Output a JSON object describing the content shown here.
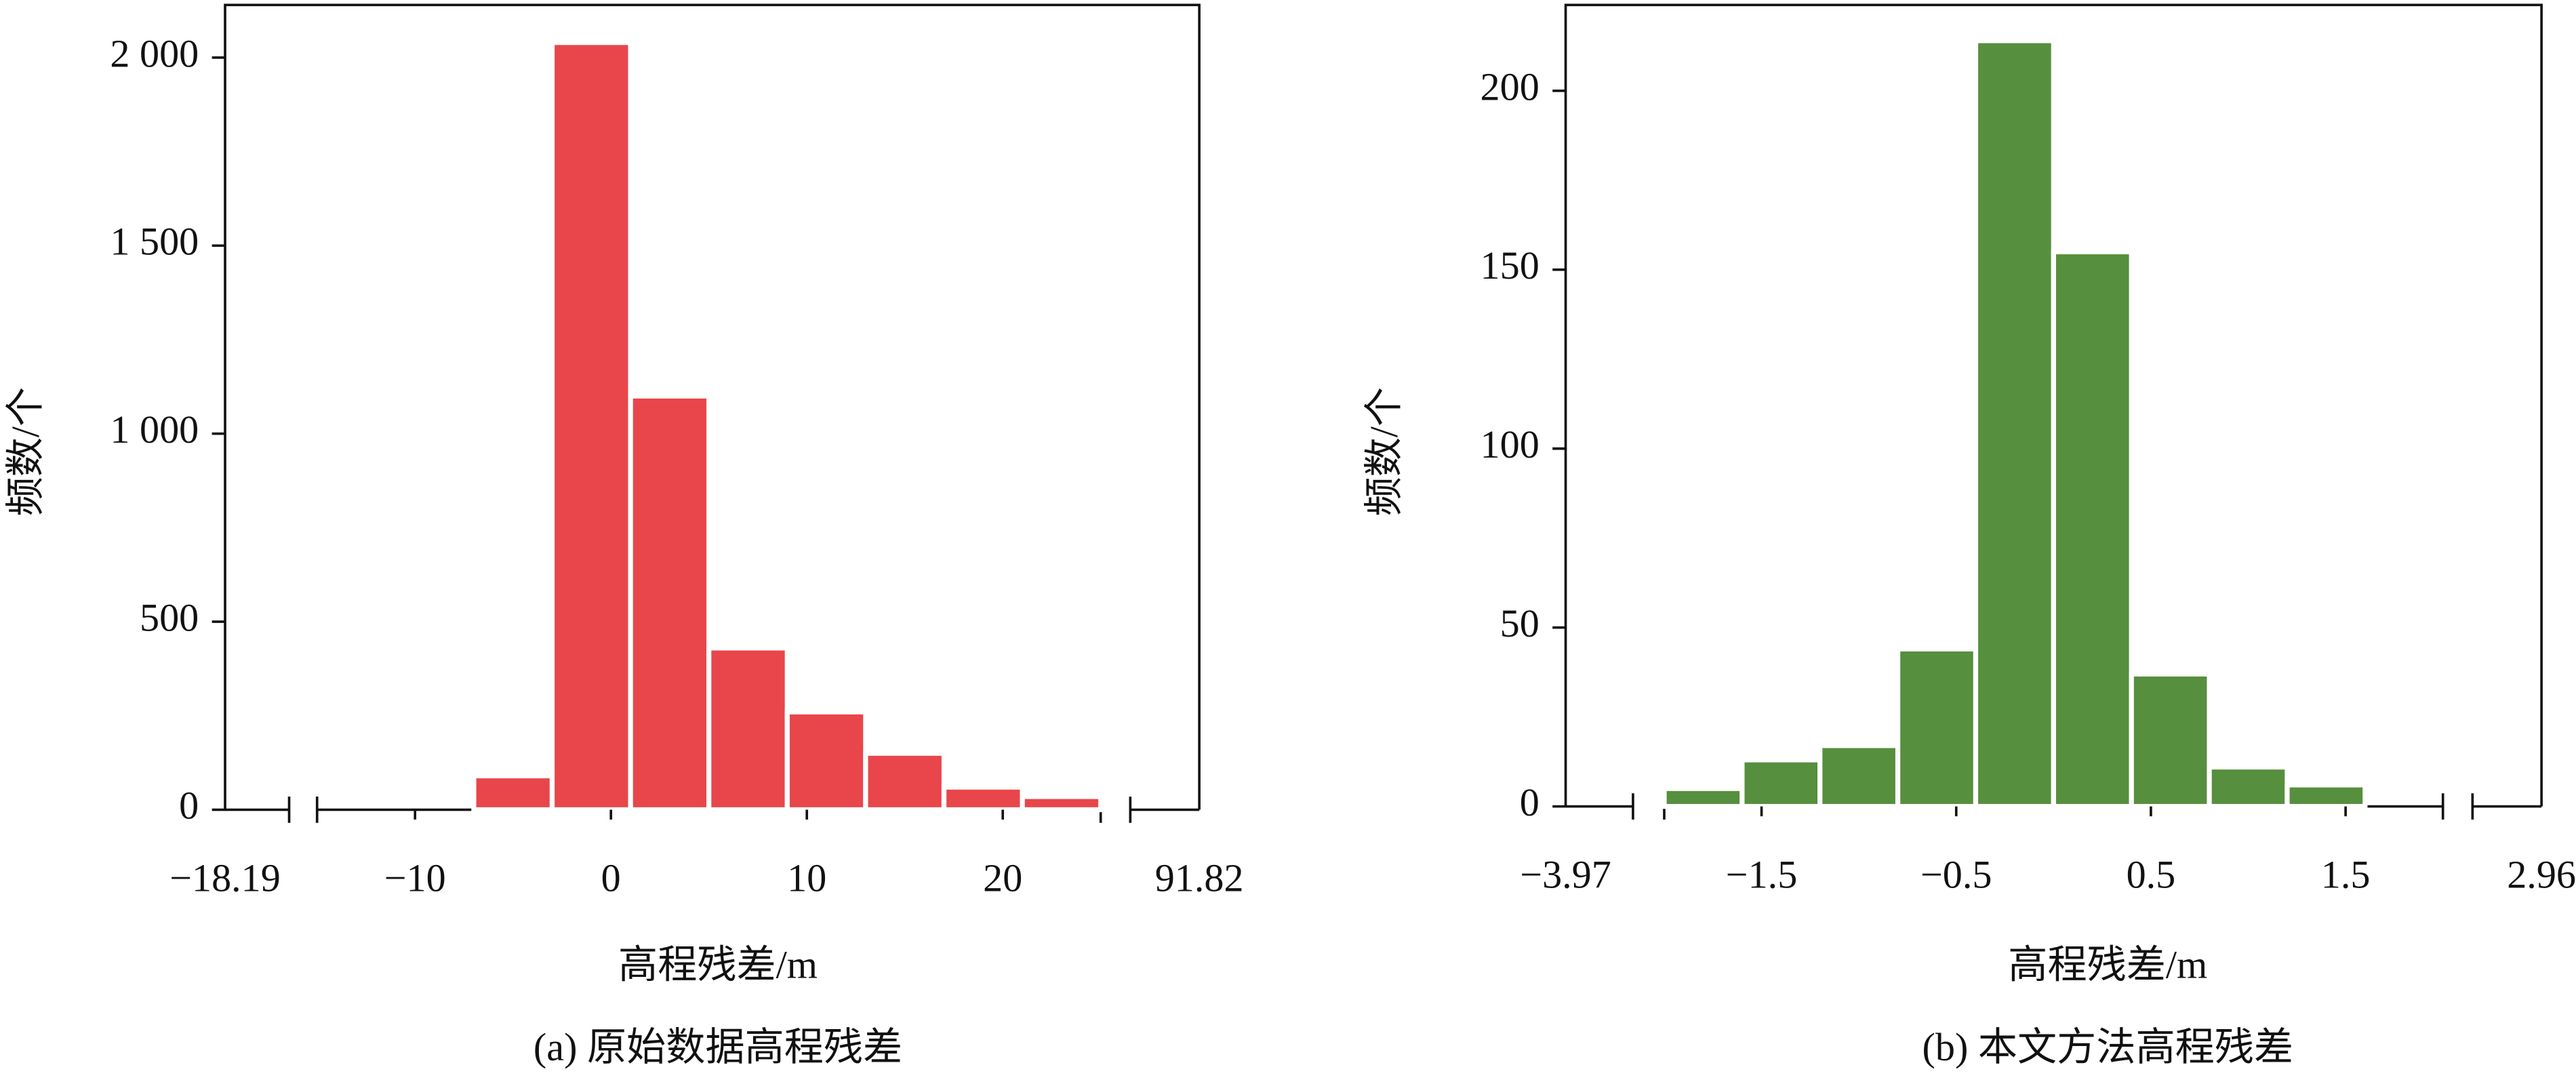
{
  "chart_data": [
    {
      "type": "histogram",
      "xlabel": "高程残差/m",
      "ylabel": "频数/个",
      "caption": "(a) 原始数据高程残差",
      "color": "#e8464a",
      "bins": [
        -7,
        -3,
        1,
        5,
        9,
        13,
        17,
        21,
        25
      ],
      "values": [
        90,
        2040,
        1100,
        430,
        260,
        150,
        60,
        35
      ],
      "xlim": [
        -15,
        25
      ],
      "xticks": [
        {
          "value": -10,
          "label": "−10"
        },
        0,
        10,
        20
      ],
      "outer_labels": [
        {
          "value": -18.19,
          "label": "−18.19"
        },
        {
          "value": 91.82,
          "label": "91.82"
        }
      ],
      "ylim": [
        0,
        2140
      ],
      "yticks": [
        0,
        500,
        {
          "value": 1000,
          "label": "1 000"
        },
        {
          "value": 1500,
          "label": "1 500"
        },
        {
          "value": 2000,
          "label": "2 000"
        }
      ]
    },
    {
      "type": "histogram",
      "xlabel": "高程残差/m",
      "ylabel": "频数/个",
      "caption": "(b) 本文方法高程残差",
      "color": "#568f3d",
      "bins": [
        -2.0,
        -1.6,
        -1.2,
        -0.8,
        -0.4,
        0,
        0.4,
        0.8,
        1.2,
        1.6
      ],
      "values": [
        5,
        13,
        17,
        44,
        214,
        155,
        37,
        11,
        6
      ],
      "xlim": [
        -2,
        2
      ],
      "xticks": [
        {
          "value": -1.5,
          "label": "−1.5"
        },
        {
          "value": -0.5,
          "label": "−0.5"
        },
        0.5,
        1.5
      ],
      "outer_labels": [
        {
          "value": -3.97,
          "label": "−3.97"
        },
        {
          "value": 2.96,
          "label": "2.96"
        }
      ],
      "ylim": [
        0,
        224
      ],
      "yticks": [
        0,
        50,
        100,
        150,
        200
      ]
    }
  ]
}
